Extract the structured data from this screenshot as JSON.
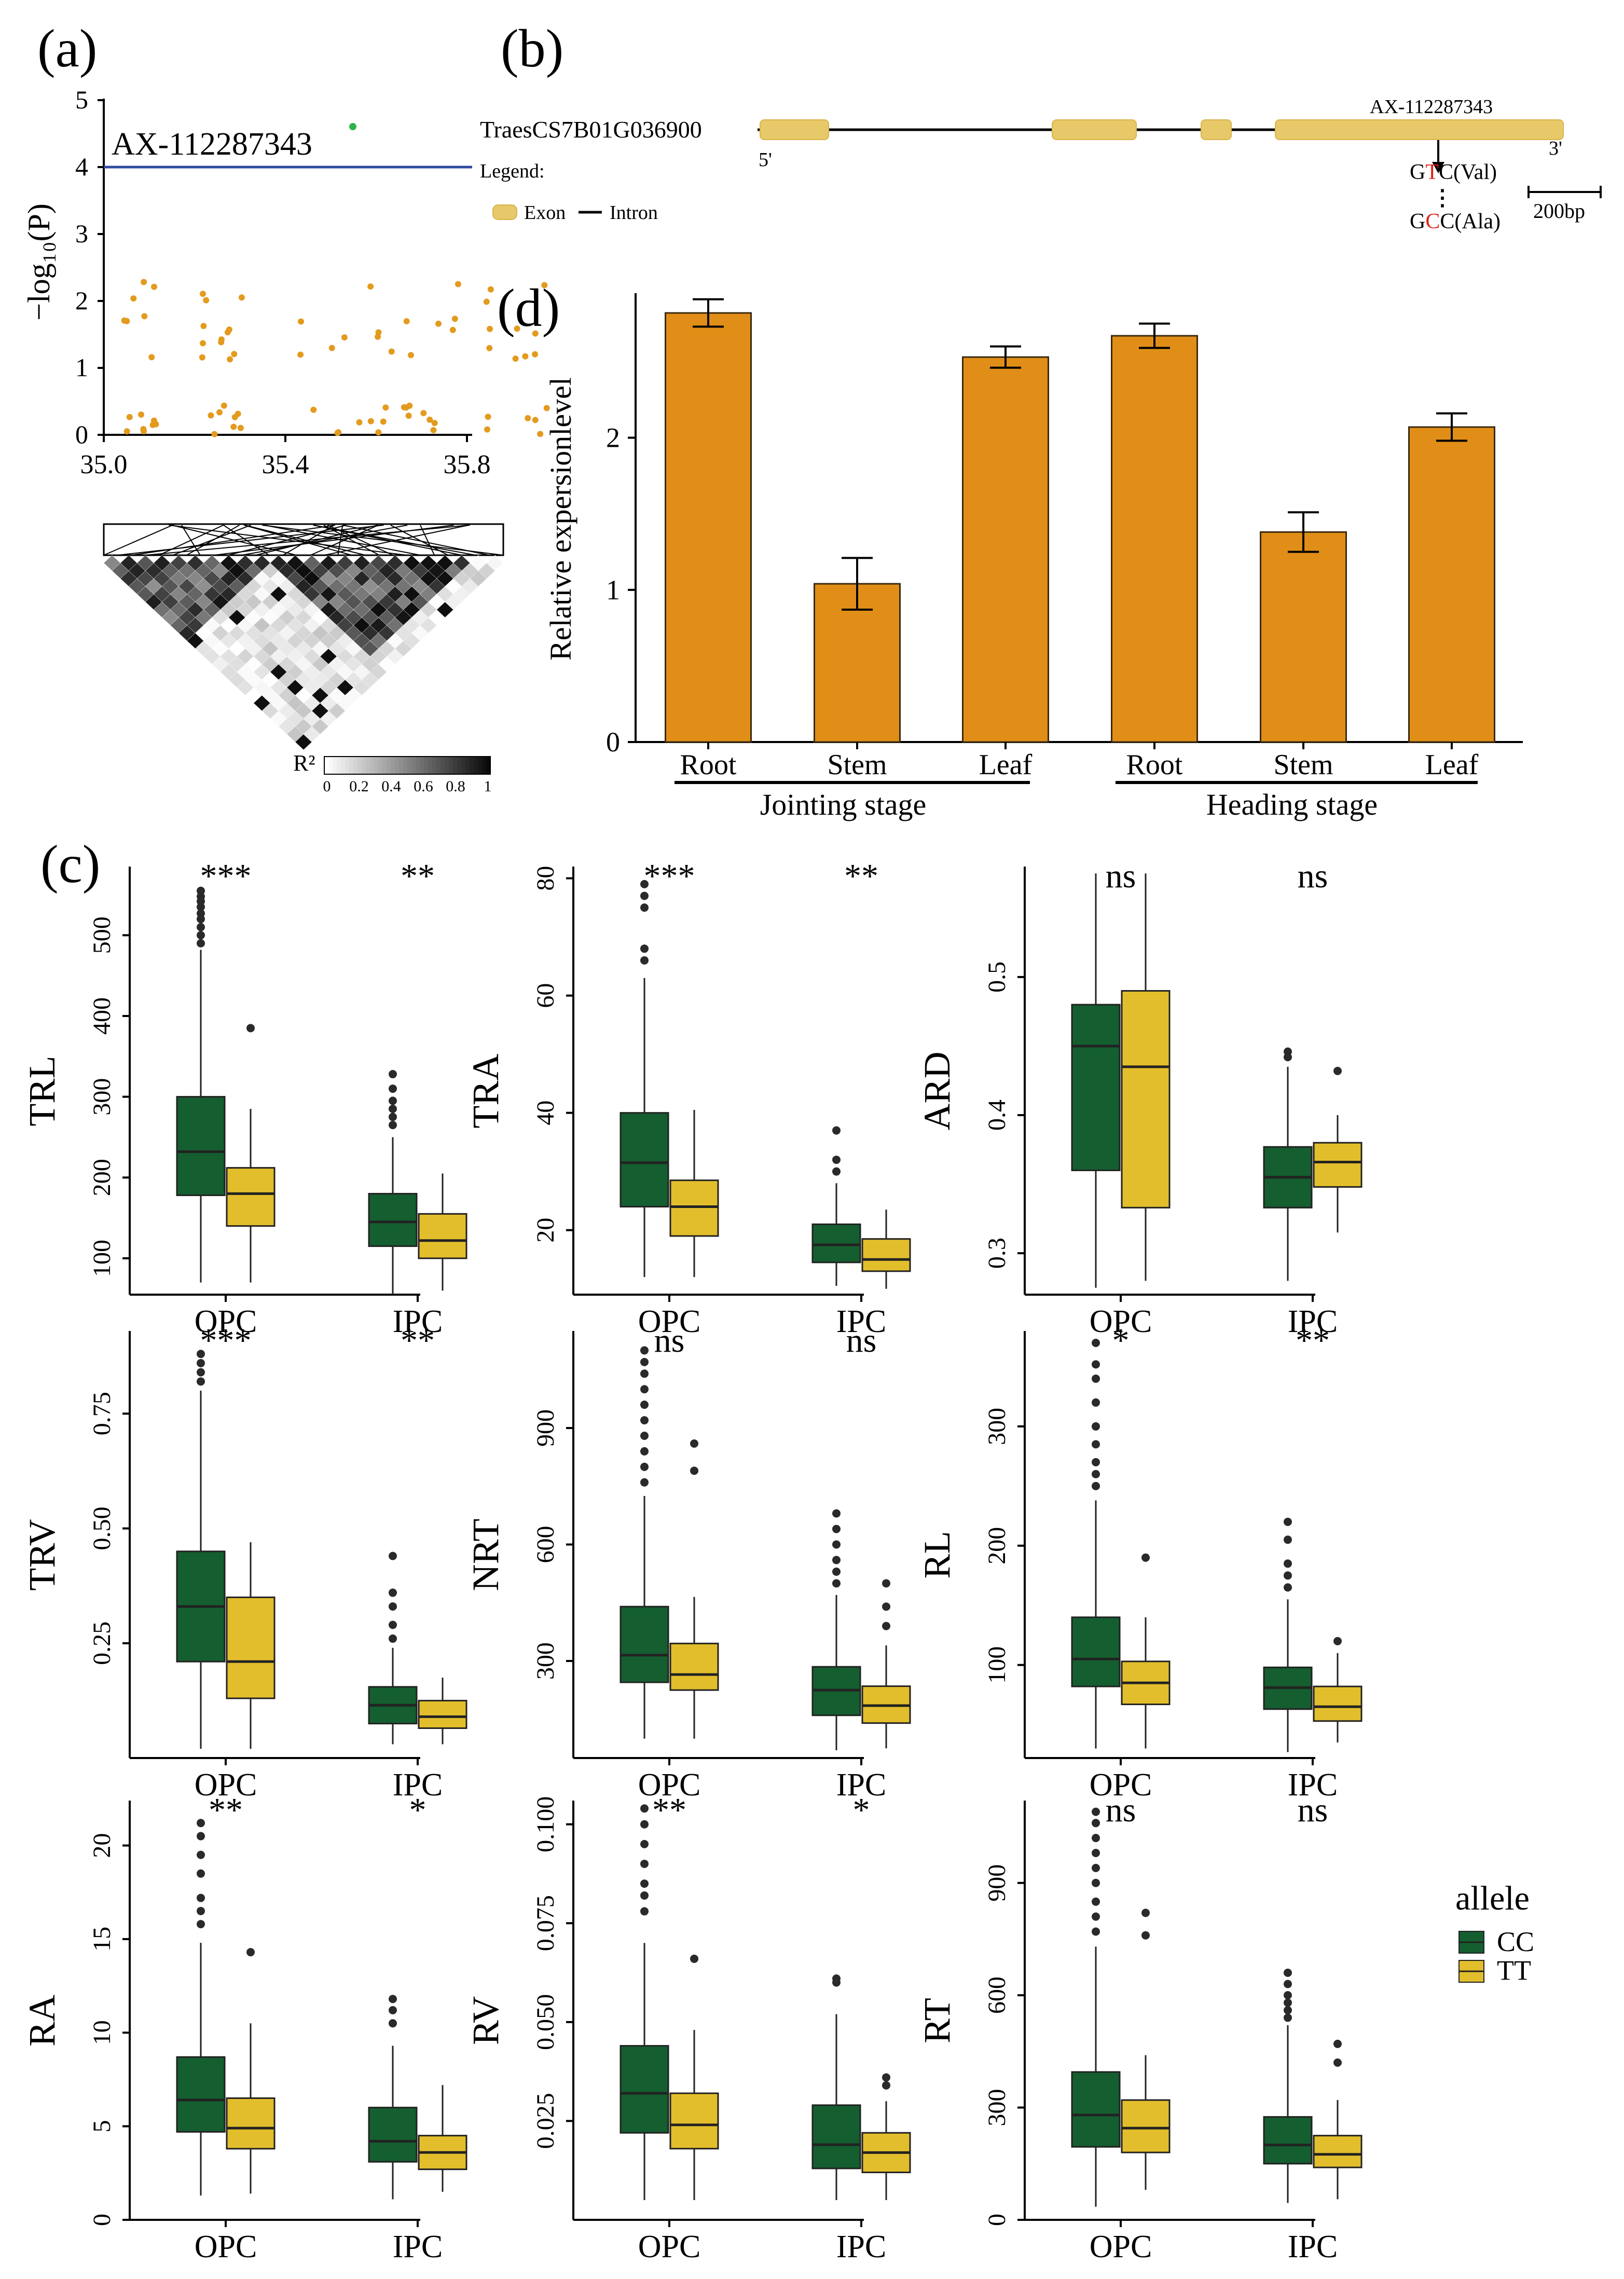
{
  "panel_labels": {
    "a": "(a)",
    "b": "(b)",
    "c": "(c)",
    "d": "(d)"
  },
  "colors": {
    "threshold_line": "#2E4BA0",
    "manhattan_point": "#E39B1E",
    "top_snp_point": "#2FB34A",
    "exon_fill": "#E8C96A",
    "exon_edge": "#D9B44A",
    "mutant_base": "#E0201B",
    "bar_fill": "#E08E17",
    "bar_edge": "#3A2A10",
    "CC": "#145E30",
    "TT": "#E3BE2C",
    "box_edge": "#222222"
  },
  "manhattan": {
    "ylabel": "−log₁₀(P)",
    "y_ticks": [
      "0",
      "1",
      "2",
      "3",
      "4",
      "5"
    ],
    "x_ticks": [
      "35.0",
      "35.4",
      "35.8"
    ],
    "top_snp_label": "AX-112287343",
    "threshold": 4,
    "ld_legend_title": "R²",
    "ld_legend_ticks": [
      "0",
      "0.2",
      "0.4",
      "0.6",
      "0.8",
      "1"
    ]
  },
  "gene": {
    "name": "TraesCS7B01G036900",
    "five_prime": "5'",
    "three_prime": "3'",
    "snp_label": "AX-112287343",
    "ref_codon_pre": "G",
    "ref_codon_mut": "T",
    "ref_codon_post": "C(Val)",
    "alt_codon_pre": "G",
    "alt_codon_mut": "C",
    "alt_codon_post": "C(Ala)",
    "scale_label": "200bp",
    "legend_title": "Legend:",
    "legend_exon": "Exon",
    "legend_intron": "Intron"
  },
  "chart_data": [
    {
      "id": "d",
      "type": "bar",
      "ylabel": "Relative expersionlevel",
      "ylim": [
        0,
        2.95
      ],
      "y_ticks": [
        "0",
        "1",
        "2"
      ],
      "categories": [
        "Root",
        "Stem",
        "Leaf",
        "Root",
        "Stem",
        "Leaf"
      ],
      "values": [
        2.82,
        1.04,
        2.53,
        2.67,
        1.38,
        2.07
      ],
      "errors": [
        0.09,
        0.17,
        0.07,
        0.08,
        0.13,
        0.09
      ],
      "groups": [
        "Jointing stage",
        "Heading stage"
      ]
    },
    {
      "id": "c",
      "type": "boxplot",
      "x_categories": [
        "OPC",
        "IPC"
      ],
      "legend_title": "allele",
      "legend_entries": [
        "CC",
        "TT"
      ],
      "panels": [
        {
          "ylabel": "TRL",
          "ylim": [
            55,
            585
          ],
          "y_ticks": [
            "100",
            "200",
            "300",
            "400",
            "500"
          ],
          "sig": [
            "***",
            "**"
          ],
          "boxes": [
            {
              "q1": 178,
              "median": 232,
              "q3": 300,
              "low": 70,
              "high": 482,
              "outliers": [
                490,
                500,
                510,
                520,
                527,
                535,
                542,
                548,
                555
              ]
            },
            {
              "q1": 140,
              "median": 180,
              "q3": 212,
              "low": 70,
              "high": 285,
              "outliers": [
                385
              ]
            },
            {
              "q1": 115,
              "median": 145,
              "q3": 180,
              "low": 55,
              "high": 250,
              "outliers": [
                265,
                275,
                285,
                295,
                310,
                328
              ]
            },
            {
              "q1": 100,
              "median": 122,
              "q3": 155,
              "low": 60,
              "high": 205,
              "outliers": []
            }
          ]
        },
        {
          "ylabel": "TRA",
          "ylim": [
            9,
            82
          ],
          "y_ticks": [
            "20",
            "40",
            "60",
            "80"
          ],
          "sig": [
            "***",
            "**"
          ],
          "boxes": [
            {
              "q1": 24,
              "median": 31.5,
              "q3": 40,
              "low": 12,
              "high": 63,
              "outliers": [
                66,
                68,
                75,
                77,
                79
              ]
            },
            {
              "q1": 19,
              "median": 24,
              "q3": 28.5,
              "low": 12,
              "high": 40.5,
              "outliers": []
            },
            {
              "q1": 14.5,
              "median": 17.5,
              "q3": 21,
              "low": 10.5,
              "high": 28,
              "outliers": [
                30,
                32,
                37
              ]
            },
            {
              "q1": 13,
              "median": 15,
              "q3": 18.5,
              "low": 10,
              "high": 23.5,
              "outliers": []
            }
          ]
        },
        {
          "ylabel": "ARD",
          "ylim": [
            0.27,
            0.58
          ],
          "y_ticks": [
            "0.3",
            "0.4",
            "0.5"
          ],
          "sig": [
            "ns",
            "ns"
          ],
          "boxes": [
            {
              "q1": 0.36,
              "median": 0.45,
              "q3": 0.48,
              "low": 0.275,
              "high": 0.575,
              "outliers": []
            },
            {
              "q1": 0.333,
              "median": 0.435,
              "q3": 0.49,
              "low": 0.28,
              "high": 0.575,
              "outliers": []
            },
            {
              "q1": 0.333,
              "median": 0.355,
              "q3": 0.377,
              "low": 0.28,
              "high": 0.435,
              "outliers": [
                0.442,
                0.446
              ]
            },
            {
              "q1": 0.348,
              "median": 0.366,
              "q3": 0.38,
              "low": 0.315,
              "high": 0.4,
              "outliers": [
                0.432
              ]
            }
          ]
        },
        {
          "ylabel": "TRV",
          "ylim": [
            0,
            0.93
          ],
          "y_ticks": [
            "0.25",
            "0.50",
            "0.75"
          ],
          "sig": [
            "***",
            "**"
          ],
          "boxes": [
            {
              "q1": 0.21,
              "median": 0.33,
              "q3": 0.45,
              "low": 0.02,
              "high": 0.8,
              "outliers": [
                0.82,
                0.84,
                0.86,
                0.88
              ]
            },
            {
              "q1": 0.13,
              "median": 0.21,
              "q3": 0.35,
              "low": 0.02,
              "high": 0.47,
              "outliers": []
            },
            {
              "q1": 0.075,
              "median": 0.115,
              "q3": 0.155,
              "low": 0.03,
              "high": 0.24,
              "outliers": [
                0.26,
                0.29,
                0.33,
                0.36,
                0.44
              ]
            },
            {
              "q1": 0.065,
              "median": 0.09,
              "q3": 0.125,
              "low": 0.03,
              "high": 0.175,
              "outliers": []
            }
          ]
        },
        {
          "ylabel": "NRT",
          "ylim": [
            50,
            1150
          ],
          "y_ticks": [
            "300",
            "600",
            "900"
          ],
          "sig": [
            "ns",
            "ns"
          ],
          "boxes": [
            {
              "q1": 245,
              "median": 315,
              "q3": 440,
              "low": 100,
              "high": 725,
              "outliers": [
                760,
                800,
                840,
                880,
                920,
                960,
                1000,
                1040,
                1070,
                1100
              ]
            },
            {
              "q1": 225,
              "median": 265,
              "q3": 345,
              "low": 100,
              "high": 465,
              "outliers": [
                790,
                860
              ]
            },
            {
              "q1": 160,
              "median": 225,
              "q3": 285,
              "low": 70,
              "high": 470,
              "outliers": [
                500,
                530,
                560,
                600,
                640,
                680
              ]
            },
            {
              "q1": 140,
              "median": 185,
              "q3": 235,
              "low": 75,
              "high": 340,
              "outliers": [
                390,
                440,
                500
              ]
            }
          ]
        },
        {
          "ylabel": "RL",
          "ylim": [
            22,
            380
          ],
          "y_ticks": [
            "100",
            "200",
            "300"
          ],
          "sig": [
            "*",
            "**"
          ],
          "boxes": [
            {
              "q1": 82,
              "median": 105,
              "q3": 140,
              "low": 30,
              "high": 238,
              "outliers": [
                250,
                260,
                270,
                285,
                300,
                320,
                340,
                352,
                370
              ]
            },
            {
              "q1": 67,
              "median": 85,
              "q3": 103,
              "low": 30,
              "high": 140,
              "outliers": [
                190
              ]
            },
            {
              "q1": 63,
              "median": 81,
              "q3": 98,
              "low": 27,
              "high": 155,
              "outliers": [
                165,
                175,
                185,
                205,
                220
              ]
            },
            {
              "q1": 53,
              "median": 65,
              "q3": 82,
              "low": 35,
              "high": 110,
              "outliers": [
                120
              ]
            }
          ]
        },
        {
          "ylabel": "RA",
          "ylim": [
            0,
            22.4
          ],
          "y_ticks": [
            "0",
            "5",
            "10",
            "15",
            "20"
          ],
          "sig": [
            "**",
            "*"
          ],
          "boxes": [
            {
              "q1": 4.7,
              "median": 6.4,
              "q3": 8.7,
              "low": 1.3,
              "high": 14.8,
              "outliers": [
                15.8,
                16.5,
                17.2,
                18.5,
                19.5,
                20.5,
                21.2
              ]
            },
            {
              "q1": 3.8,
              "median": 4.9,
              "q3": 6.5,
              "low": 1.4,
              "high": 10.5,
              "outliers": [
                14.3
              ]
            },
            {
              "q1": 3.1,
              "median": 4.2,
              "q3": 6.0,
              "low": 1.1,
              "high": 9.3,
              "outliers": [
                10.5,
                11.2,
                11.8
              ]
            },
            {
              "q1": 2.7,
              "median": 3.6,
              "q3": 4.5,
              "low": 1.5,
              "high": 7.2,
              "outliers": []
            }
          ]
        },
        {
          "ylabel": "RV",
          "ylim": [
            0,
            0.106
          ],
          "y_ticks": [
            "0.025",
            "0.050",
            "0.075",
            "0.100"
          ],
          "sig": [
            "**",
            "*"
          ],
          "boxes": [
            {
              "q1": 0.022,
              "median": 0.032,
              "q3": 0.044,
              "low": 0.005,
              "high": 0.07,
              "outliers": [
                0.078,
                0.082,
                0.085,
                0.09,
                0.095,
                0.1,
                0.104
              ]
            },
            {
              "q1": 0.018,
              "median": 0.024,
              "q3": 0.032,
              "low": 0.005,
              "high": 0.048,
              "outliers": [
                0.066
              ]
            },
            {
              "q1": 0.013,
              "median": 0.019,
              "q3": 0.029,
              "low": 0.005,
              "high": 0.052,
              "outliers": [
                0.06,
                0.061
              ]
            },
            {
              "q1": 0.012,
              "median": 0.017,
              "q3": 0.022,
              "low": 0.005,
              "high": 0.03,
              "outliers": [
                0.034,
                0.036
              ]
            }
          ]
        },
        {
          "ylabel": "RT",
          "ylim": [
            0,
            1120
          ],
          "y_ticks": [
            "0",
            "300",
            "600",
            "900"
          ],
          "sig": [
            "ns",
            "ns"
          ],
          "boxes": [
            {
              "q1": 195,
              "median": 280,
              "q3": 395,
              "low": 35,
              "high": 730,
              "outliers": [
                770,
                810,
                850,
                900,
                940,
                980,
                1020,
                1060,
                1090
              ]
            },
            {
              "q1": 180,
              "median": 245,
              "q3": 320,
              "low": 80,
              "high": 440,
              "outliers": [
                760,
                820
              ]
            },
            {
              "q1": 150,
              "median": 200,
              "q3": 275,
              "low": 45,
              "high": 520,
              "outliers": [
                540,
                560,
                580,
                600,
                630,
                660
              ]
            },
            {
              "q1": 140,
              "median": 175,
              "q3": 225,
              "low": 55,
              "high": 320,
              "outliers": [
                420,
                470
              ]
            }
          ]
        }
      ]
    }
  ]
}
